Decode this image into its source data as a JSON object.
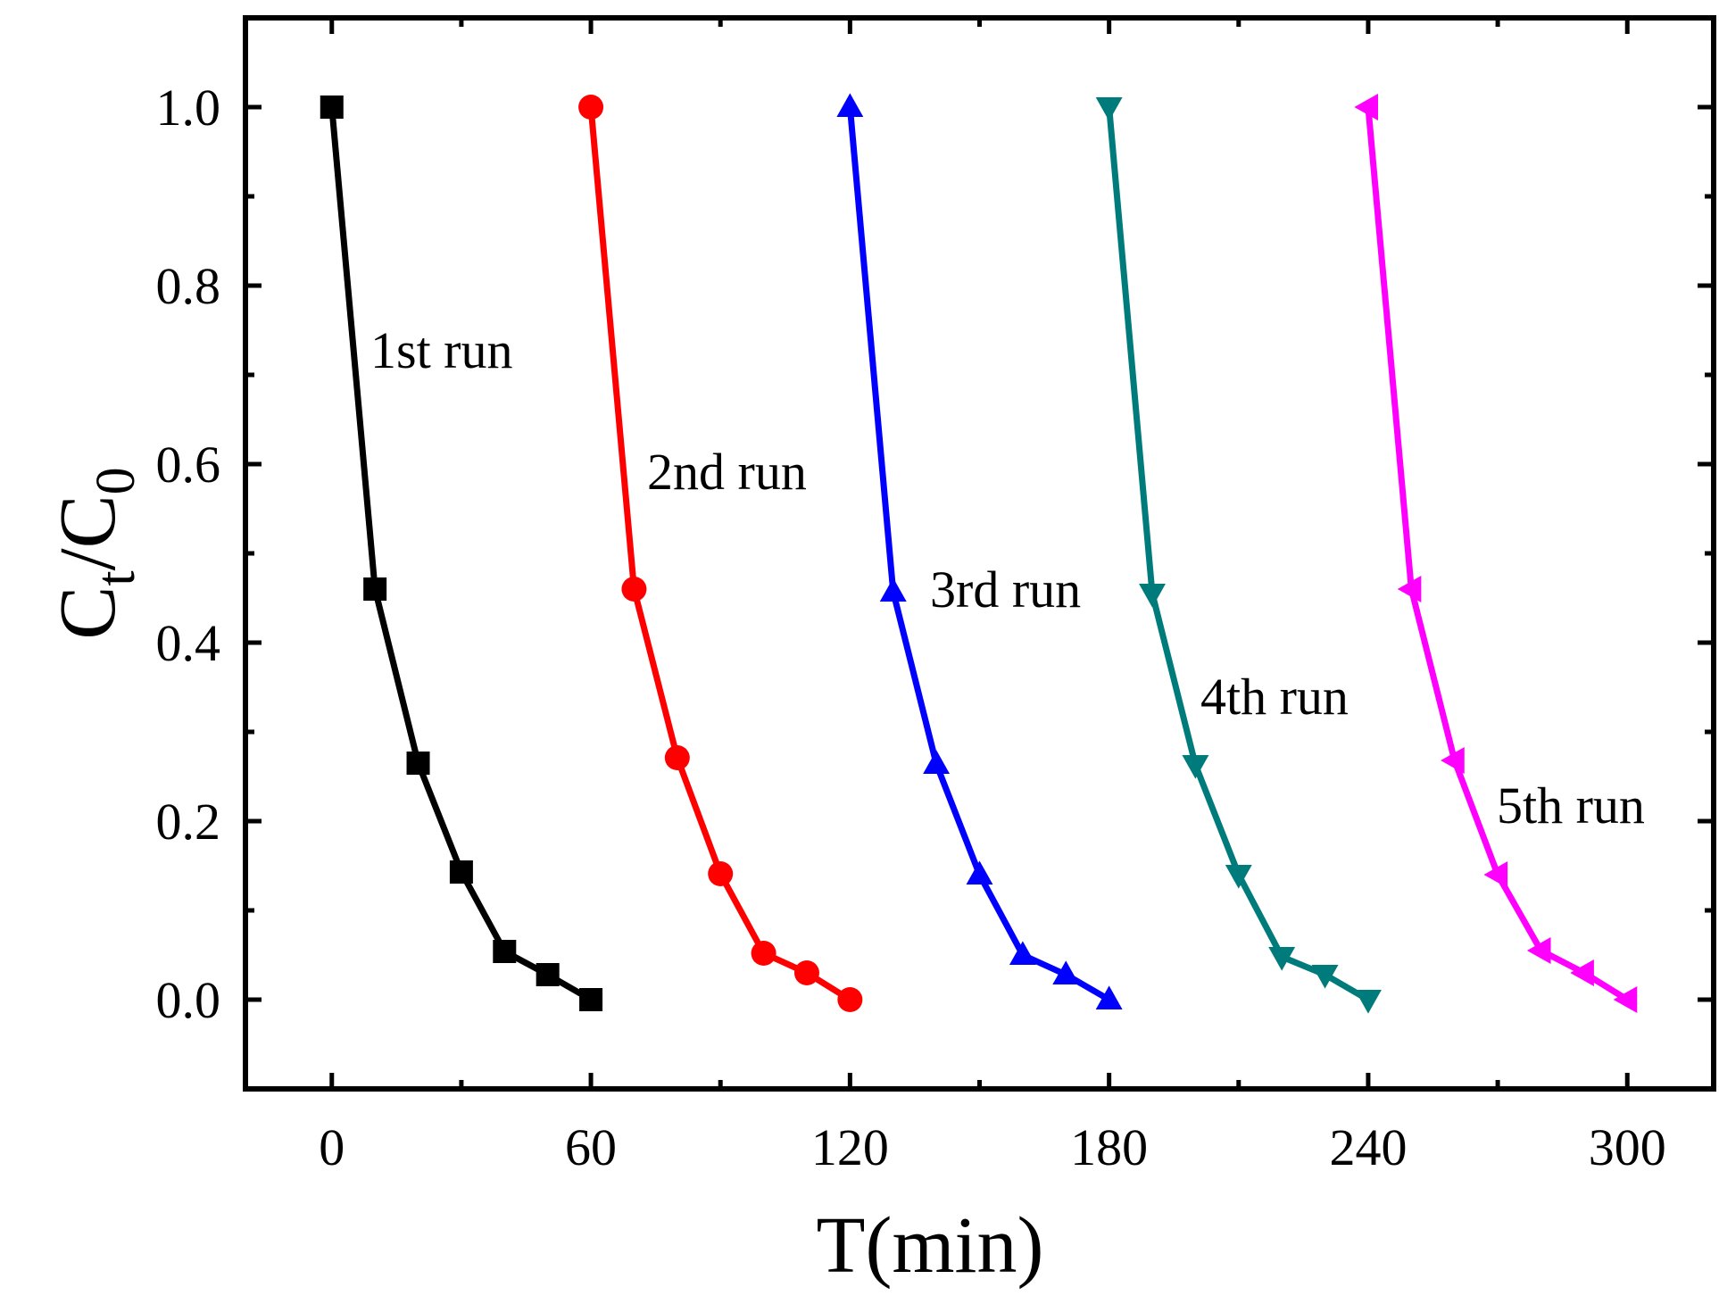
{
  "chart_data": {
    "type": "line",
    "xlabel": "T(min)",
    "ylabel": {
      "base1": "C",
      "sub1": "t",
      "slash": "/",
      "base2": "C",
      "sub2": "0"
    },
    "xlim": [
      -20,
      320
    ],
    "ylim": [
      -0.1,
      1.1
    ],
    "x_ticks": [
      0,
      60,
      120,
      180,
      240,
      300
    ],
    "x_tick_labels": [
      "0",
      "60",
      "120",
      "180",
      "240",
      "300"
    ],
    "y_ticks": [
      0.0,
      0.2,
      0.4,
      0.6,
      0.8,
      1.0
    ],
    "y_tick_labels": [
      "0.0",
      "0.2",
      "0.4",
      "0.6",
      "0.8",
      "1.0"
    ],
    "grid": false,
    "series": [
      {
        "name": "1st run",
        "color": "#000000",
        "marker": "square",
        "x": [
          0,
          10,
          20,
          30,
          40,
          50,
          60
        ],
        "y": [
          1.0,
          0.46,
          0.265,
          0.143,
          0.054,
          0.028,
          0.0
        ]
      },
      {
        "name": "2nd run",
        "color": "#ff0000",
        "marker": "circle",
        "x": [
          60,
          70,
          80,
          90,
          100,
          110,
          120
        ],
        "y": [
          1.0,
          0.46,
          0.271,
          0.141,
          0.052,
          0.03,
          0.0
        ]
      },
      {
        "name": "3rd run",
        "color": "#0000ff",
        "marker": "triangle-up",
        "x": [
          120,
          130,
          140,
          150,
          160,
          170,
          180
        ],
        "y": [
          1.0,
          0.457,
          0.264,
          0.14,
          0.05,
          0.028,
          0.0
        ]
      },
      {
        "name": "4th run",
        "color": "#007b7b",
        "marker": "triangle-down",
        "x": [
          180,
          190,
          200,
          210,
          220,
          230,
          240
        ],
        "y": [
          1.0,
          0.455,
          0.263,
          0.14,
          0.048,
          0.028,
          0.0
        ]
      },
      {
        "name": "5th run",
        "color": "#ff00ff",
        "marker": "triangle-left",
        "x": [
          240,
          250,
          260,
          270,
          280,
          290,
          300
        ],
        "y": [
          1.0,
          0.46,
          0.268,
          0.14,
          0.055,
          0.03,
          0.0
        ]
      }
    ],
    "annotations": [
      "1st run",
      "2nd run",
      "3rd run",
      "4th run",
      "5th run"
    ]
  }
}
